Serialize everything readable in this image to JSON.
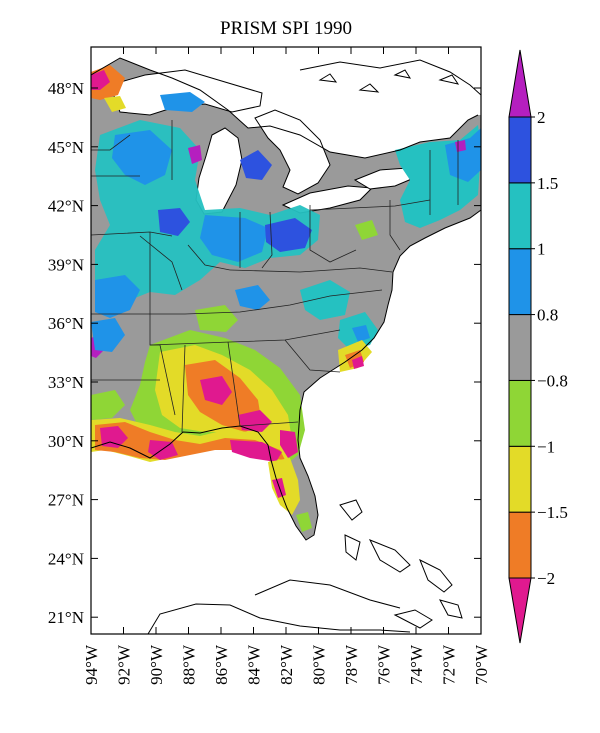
{
  "title": "PRISM SPI 1990",
  "lat_labels": [
    "48°N",
    "45°N",
    "42°N",
    "39°N",
    "36°N",
    "33°N",
    "30°N",
    "27°N",
    "24°N",
    "21°N"
  ],
  "lon_labels": [
    "94°W",
    "92°W",
    "90°W",
    "88°W",
    "86°W",
    "84°W",
    "82°W",
    "80°W",
    "78°W",
    "76°W",
    "74°W",
    "72°W",
    "70°W"
  ],
  "colorbar": {
    "tick_labels": [
      "2",
      "1.5",
      "1",
      "0.8",
      "−0.8",
      "−1",
      "−1.5",
      "−2"
    ],
    "colors": [
      "#e0198f",
      "#ef7c26",
      "#e3db28",
      "#8fd636",
      "#9a9a9a",
      "#1f93e8",
      "#25c1c1",
      "#2d52df",
      "#b51fbf"
    ]
  },
  "palette": {
    "neutral": "#9a9a9a",
    "green": "#8fd636",
    "yellow": "#e3db28",
    "orange": "#ef7c26",
    "magenta": "#e0198f",
    "blue": "#1f93e8",
    "cyan": "#25c1c1",
    "darkblue": "#2d52df",
    "purple": "#b51fbf"
  }
}
